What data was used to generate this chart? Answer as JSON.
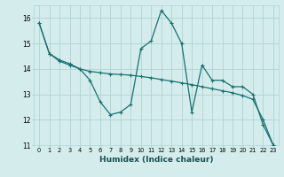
{
  "xlabel": "Humidex (Indice chaleur)",
  "bg_color": "#d4ecec",
  "grid_color": "#aed4d4",
  "line_color": "#1a7070",
  "xmin": -0.5,
  "xmax": 23.5,
  "ymin": 11,
  "ymax": 16.5,
  "yticks": [
    11,
    12,
    13,
    14,
    15,
    16
  ],
  "xticks": [
    0,
    1,
    2,
    3,
    4,
    5,
    6,
    7,
    8,
    9,
    10,
    11,
    12,
    13,
    14,
    15,
    16,
    17,
    18,
    19,
    20,
    21,
    22,
    23
  ],
  "line1_x": [
    0,
    1,
    2,
    3,
    4,
    5,
    6,
    7,
    8,
    9,
    10,
    11,
    12,
    13,
    14,
    15,
    16,
    17,
    18,
    19,
    20,
    21,
    22,
    23
  ],
  "line1_y": [
    15.8,
    14.6,
    14.3,
    14.15,
    14.0,
    13.55,
    12.7,
    12.2,
    12.3,
    12.6,
    14.8,
    15.1,
    16.3,
    15.8,
    15.0,
    12.3,
    14.15,
    13.55,
    13.55,
    13.3,
    13.3,
    13.0,
    11.8,
    11.0
  ],
  "line2_x": [
    0,
    1,
    2,
    3,
    4,
    5,
    6,
    7,
    8,
    9,
    10,
    11,
    12,
    13,
    14,
    15,
    16,
    17,
    18,
    19,
    20,
    21,
    22,
    23
  ],
  "line2_y": [
    15.8,
    14.6,
    14.35,
    14.2,
    14.0,
    13.9,
    13.85,
    13.8,
    13.78,
    13.75,
    13.7,
    13.65,
    13.58,
    13.52,
    13.45,
    13.38,
    13.3,
    13.22,
    13.14,
    13.06,
    12.95,
    12.8,
    12.0,
    11.0
  ]
}
